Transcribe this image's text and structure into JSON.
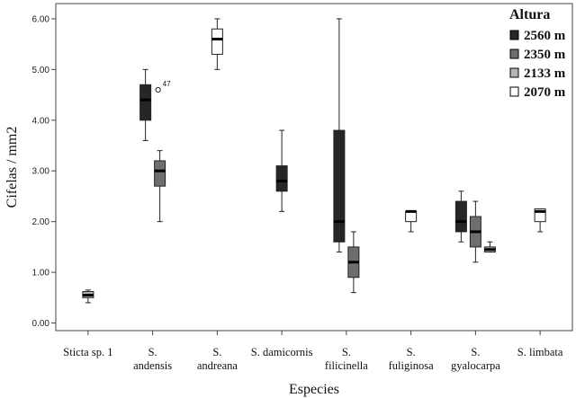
{
  "chart_data": {
    "type": "box",
    "xlabel": "Especies",
    "ylabel": "Cifelas / mm2",
    "ylim": [
      -0.15,
      6.3
    ],
    "yticks": [
      "0.00",
      "1.00",
      "2.00",
      "3.00",
      "4.00",
      "5.00",
      "6.00"
    ],
    "categories": [
      [
        "Sticta sp. 1"
      ],
      [
        "S.",
        "andensis"
      ],
      [
        "S.",
        "andreana"
      ],
      [
        "S. damicornis"
      ],
      [
        "S.",
        "filicinella"
      ],
      [
        "S.",
        "fuliginosa"
      ],
      [
        "S.",
        "gyalocarpa"
      ],
      [
        "S. limbata"
      ]
    ],
    "legend": {
      "title": "Altura",
      "position": "top-right",
      "entries": [
        {
          "label": "2560 m",
          "color": "#262626"
        },
        {
          "label": "2350 m",
          "color": "#6e6e6e"
        },
        {
          "label": "2133 m",
          "color": "#b4b4b4"
        },
        {
          "label": "2070 m",
          "color": "#ffffff"
        }
      ]
    },
    "boxes": [
      {
        "category": 0,
        "series": 2,
        "min": 0.4,
        "q1": 0.5,
        "median": 0.55,
        "q3": 0.62,
        "max": 0.65
      },
      {
        "category": 1,
        "series": 0,
        "min": 3.6,
        "q1": 4.0,
        "median": 4.4,
        "q3": 4.7,
        "max": 5.0
      },
      {
        "category": 1,
        "series": 1,
        "min": 2.0,
        "q1": 2.7,
        "median": 3.0,
        "q3": 3.2,
        "max": 3.4
      },
      {
        "category": 2,
        "series": 3,
        "min": 5.0,
        "q1": 5.3,
        "median": 5.6,
        "q3": 5.8,
        "max": 6.0
      },
      {
        "category": 3,
        "series": 0,
        "min": 2.2,
        "q1": 2.6,
        "median": 2.8,
        "q3": 3.1,
        "max": 3.8
      },
      {
        "category": 4,
        "series": 0,
        "min": 1.4,
        "q1": 1.6,
        "median": 2.0,
        "q3": 3.8,
        "max": 6.0
      },
      {
        "category": 4,
        "series": 1,
        "min": 0.6,
        "q1": 0.9,
        "median": 1.2,
        "q3": 1.5,
        "max": 1.8
      },
      {
        "category": 5,
        "series": 3,
        "min": 1.8,
        "q1": 2.0,
        "median": 2.2,
        "q3": 2.2,
        "max": 2.2
      },
      {
        "category": 6,
        "series": 0,
        "min": 1.6,
        "q1": 1.8,
        "median": 2.0,
        "q3": 2.4,
        "max": 2.6
      },
      {
        "category": 6,
        "series": 1,
        "min": 1.2,
        "q1": 1.5,
        "median": 1.8,
        "q3": 2.1,
        "max": 2.4
      },
      {
        "category": 6,
        "series": 2,
        "min": 1.4,
        "q1": 1.4,
        "median": 1.45,
        "q3": 1.5,
        "max": 1.6
      },
      {
        "category": 7,
        "series": 3,
        "min": 1.8,
        "q1": 2.0,
        "median": 2.2,
        "q3": 2.25,
        "max": 2.25
      }
    ],
    "outliers": [
      {
        "category": 1,
        "series": 0,
        "value": 4.6,
        "label": "47"
      }
    ]
  }
}
